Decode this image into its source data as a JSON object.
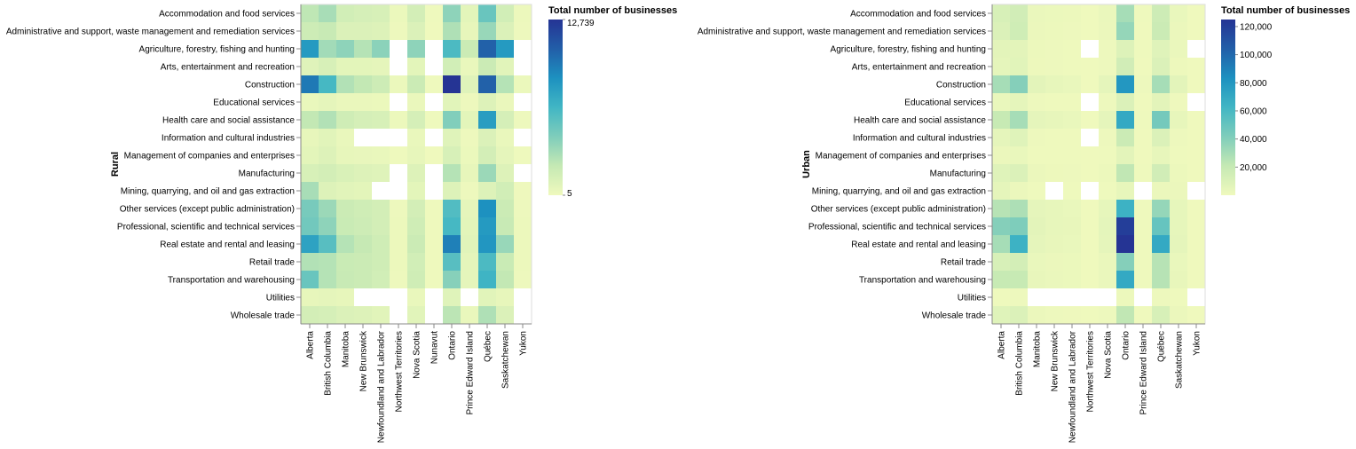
{
  "chart_data": [
    {
      "type": "heatmap",
      "ylabel": "Rural",
      "xlabel": "",
      "legend_title": "Total number of businesses",
      "legend_position": "right",
      "legend_ticks": [
        "12,739",
        "5"
      ],
      "color_domain": [
        5,
        12739
      ],
      "colors": [
        "#eff9bd",
        "#c5e9b4",
        "#7fcdbb",
        "#41b6c4",
        "#1d91c0",
        "#225ea8",
        "#253494"
      ],
      "missing_color": "#ffffff",
      "rows": [
        "Accommodation and food services",
        "Administrative and support, waste management and remediation services",
        "Agriculture, forestry, fishing and hunting",
        "Arts, entertainment and recreation",
        "Construction",
        "Educational services",
        "Health care and social assistance",
        "Information and cultural industries",
        "Management of companies and enterprises",
        "Manufacturing",
        "Mining, quarrying, and oil and gas extraction",
        "Other services (except public administration)",
        "Professional, scientific and technical services",
        "Real estate and rental and leasing",
        "Retail trade",
        "Transportation and warehousing",
        "Utilities",
        "Wholesale trade"
      ],
      "columns": [
        "Alberta",
        "British Columbia",
        "Manitoba",
        "New Brunswick",
        "Newfoundland and Labrador",
        "Northwest Territories",
        "Nova Scotia",
        "Nunavut",
        "Ontario",
        "Prince Edward Island",
        "Québec",
        "Saskatchewan",
        "Yukon"
      ],
      "values": [
        [
          2300,
          3000,
          1500,
          1300,
          1200,
          200,
          1400,
          50,
          3800,
          600,
          5000,
          1500,
          150
        ],
        [
          1700,
          2000,
          1000,
          1000,
          900,
          100,
          1000,
          30,
          2800,
          400,
          3500,
          1000,
          100
        ],
        [
          8000,
          3200,
          3800,
          2600,
          3900,
          null,
          3800,
          null,
          6000,
          1800,
          10500,
          8000,
          null
        ],
        [
          800,
          1200,
          600,
          600,
          500,
          null,
          600,
          null,
          1500,
          300,
          1800,
          700,
          null
        ],
        [
          9500,
          6200,
          2700,
          2200,
          1700,
          200,
          1800,
          60,
          12739,
          800,
          10500,
          2600,
          200
        ],
        [
          300,
          500,
          250,
          250,
          200,
          null,
          250,
          null,
          700,
          100,
          900,
          250,
          null
        ],
        [
          2200,
          2700,
          1600,
          1300,
          1200,
          150,
          1300,
          40,
          4200,
          600,
          7800,
          1300,
          120
        ],
        [
          400,
          700,
          300,
          null,
          null,
          null,
          300,
          null,
          800,
          100,
          1000,
          300,
          null
        ],
        [
          600,
          900,
          400,
          350,
          300,
          50,
          400,
          20,
          1200,
          200,
          1400,
          500,
          60
        ],
        [
          1200,
          1400,
          1100,
          900,
          800,
          null,
          900,
          null,
          2600,
          400,
          3400,
          900,
          null
        ],
        [
          3000,
          900,
          700,
          600,
          null,
          null,
          600,
          null,
          900,
          100,
          900,
          1500,
          80
        ],
        [
          4500,
          3400,
          1800,
          1600,
          1400,
          100,
          1400,
          40,
          5800,
          500,
          8500,
          1800,
          120
        ],
        [
          4700,
          3800,
          1900,
          1700,
          1400,
          150,
          1600,
          40,
          6200,
          600,
          8000,
          2000,
          150
        ],
        [
          7500,
          5600,
          2600,
          2100,
          1600,
          150,
          1800,
          40,
          9200,
          700,
          8200,
          3500,
          150
        ],
        [
          2700,
          2600,
          1900,
          1800,
          1600,
          150,
          1500,
          40,
          5600,
          500,
          6000,
          1900,
          150
        ],
        [
          5000,
          2600,
          2000,
          1800,
          1500,
          100,
          1600,
          40,
          4000,
          500,
          6500,
          2200,
          120
        ],
        [
          400,
          500,
          400,
          null,
          null,
          null,
          300,
          null,
          800,
          null,
          700,
          400,
          null
        ],
        [
          1400,
          1300,
          1000,
          900,
          700,
          null,
          700,
          null,
          2400,
          300,
          2800,
          1000,
          null
        ]
      ]
    },
    {
      "type": "heatmap",
      "ylabel": "Urban",
      "xlabel": "",
      "legend_title": "Total number of businesses",
      "legend_position": "right",
      "legend_ticks": [
        "120,000",
        "100,000",
        "80,000",
        "60,000",
        "40,000",
        "20,000"
      ],
      "legend_tick_values": [
        120000,
        100000,
        80000,
        60000,
        40000,
        20000
      ],
      "color_domain": [
        0,
        125000
      ],
      "colors": [
        "#eff9bd",
        "#c5e9b4",
        "#7fcdbb",
        "#41b6c4",
        "#1d91c0",
        "#225ea8",
        "#253494"
      ],
      "missing_color": "#ffffff",
      "rows": [
        "Accommodation and food services",
        "Administrative and support, waste management and remediation services",
        "Agriculture, forestry, fishing and hunting",
        "Arts, entertainment and recreation",
        "Construction",
        "Educational services",
        "Health care and social assistance",
        "Information and cultural industries",
        "Management of companies and enterprises",
        "Manufacturing",
        "Mining, quarrying, and oil and gas extraction",
        "Other services (except public administration)",
        "Professional, scientific and technical services",
        "Real estate and rental and leasing",
        "Retail trade",
        "Transportation and warehousing",
        "Utilities",
        "Wholesale trade"
      ],
      "columns": [
        "Alberta",
        "British Columbia",
        "Manitoba",
        "New Brunswick",
        "Newfoundland and Labrador",
        "Northwest Territories",
        "Nova Scotia",
        "Ontario",
        "Prince Edward Island",
        "Québec",
        "Saskatchewan",
        "Yukon"
      ],
      "values": [
        [
          12000,
          15000,
          2500,
          1800,
          1500,
          150,
          2500,
          30000,
          300,
          17000,
          3000,
          150
        ],
        [
          10000,
          16000,
          2000,
          1500,
          1000,
          80,
          2000,
          35000,
          200,
          18000,
          2000,
          80
        ],
        [
          6000,
          6000,
          1500,
          1000,
          600,
          null,
          1000,
          9000,
          300,
          8000,
          2500,
          null
        ],
        [
          5000,
          7000,
          1200,
          800,
          600,
          70,
          1000,
          15000,
          200,
          10000,
          1200,
          70
        ],
        [
          30000,
          40000,
          6000,
          4000,
          3000,
          150,
          5000,
          80000,
          800,
          30000,
          6000,
          150
        ],
        [
          3000,
          5000,
          800,
          500,
          400,
          null,
          800,
          10000,
          100,
          6000,
          700,
          null
        ],
        [
          20000,
          30000,
          5000,
          4000,
          3000,
          150,
          5000,
          70000,
          600,
          45000,
          4000,
          150
        ],
        [
          5000,
          8000,
          1000,
          600,
          500,
          null,
          800,
          18000,
          100,
          10000,
          800,
          50
        ],
        [
          2000,
          3000,
          600,
          400,
          300,
          30,
          500,
          6000,
          80,
          4000,
          600,
          30
        ],
        [
          8000,
          10000,
          2000,
          1200,
          800,
          40,
          1500,
          22000,
          300,
          15000,
          1500,
          40
        ],
        [
          5000,
          2000,
          300,
          null,
          300,
          null,
          400,
          4000,
          null,
          2000,
          2000,
          null
        ],
        [
          25000,
          28000,
          5000,
          4000,
          3000,
          120,
          4500,
          65000,
          600,
          35000,
          4500,
          120
        ],
        [
          40000,
          42000,
          6000,
          4000,
          3500,
          150,
          5500,
          120000,
          500,
          50000,
          4500,
          150
        ],
        [
          30000,
          65000,
          5000,
          3500,
          3000,
          150,
          5000,
          125000,
          600,
          70000,
          5000,
          150
        ],
        [
          12000,
          14000,
          3000,
          2000,
          1800,
          80,
          2500,
          40000,
          300,
          25000,
          3000,
          80
        ],
        [
          20000,
          20000,
          3500,
          2500,
          1800,
          80,
          2500,
          70000,
          400,
          25000,
          3500,
          80
        ],
        [
          500,
          800,
          null,
          null,
          null,
          null,
          null,
          1500,
          null,
          1000,
          300,
          null
        ],
        [
          8000,
          10000,
          2000,
          1000,
          700,
          40,
          1000,
          22000,
          200,
          12000,
          2000,
          40
        ]
      ]
    }
  ]
}
